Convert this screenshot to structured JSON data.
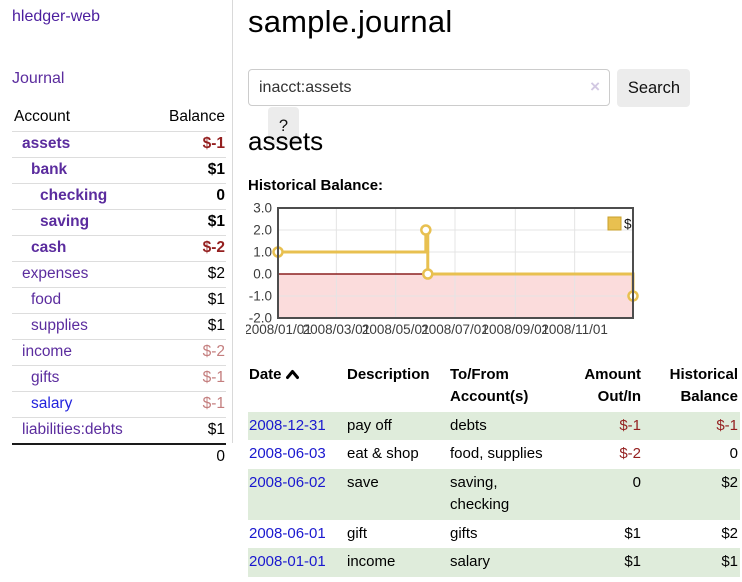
{
  "app": {
    "title": "hledger-web",
    "nav_journal": "Journal"
  },
  "sidebar": {
    "header": {
      "account": "Account",
      "balance": "Balance"
    },
    "rows": [
      {
        "name": "assets",
        "indent": 1,
        "bold": true,
        "balance": "$-1",
        "balance_style": "neg"
      },
      {
        "name": "bank",
        "indent": 2,
        "bold": true,
        "balance": "$1",
        "balance_style": "pos"
      },
      {
        "name": "checking",
        "indent": 3,
        "bold": true,
        "balance": "0",
        "balance_style": "pos"
      },
      {
        "name": "saving",
        "indent": 3,
        "bold": true,
        "balance": "$1",
        "balance_style": "pos"
      },
      {
        "name": "cash",
        "indent": 2,
        "bold": true,
        "balance": "$-2",
        "balance_style": "neg"
      },
      {
        "name": "expenses",
        "indent": 1,
        "bold": false,
        "balance": "$2",
        "balance_style": "pos"
      },
      {
        "name": "food",
        "indent": 2,
        "bold": false,
        "balance": "$1",
        "balance_style": "pos"
      },
      {
        "name": "supplies",
        "indent": 2,
        "bold": false,
        "balance": "$1",
        "balance_style": "pos"
      },
      {
        "name": "income",
        "indent": 1,
        "bold": false,
        "balance": "$-2",
        "balance_style": "negmuted"
      },
      {
        "name": "gifts",
        "indent": 2,
        "bold": false,
        "balance": "$-1",
        "balance_style": "negmuted"
      },
      {
        "name": "salary",
        "indent": 2,
        "bold": false,
        "link_style": "blue",
        "balance": "$-1",
        "balance_style": "negmuted"
      },
      {
        "name": "liabilities:debts",
        "indent": 1,
        "bold": false,
        "balance": "$1",
        "balance_style": "pos"
      }
    ],
    "total": "0"
  },
  "header": {
    "title": "sample.journal"
  },
  "search": {
    "value": "inacct:assets",
    "clear_icon_glyph": "×",
    "button_label": "Search",
    "help_label": "?"
  },
  "content": {
    "heading": "assets",
    "chart_label": "Historical Balance:"
  },
  "chart_data": {
    "type": "line",
    "step": true,
    "title": "Historical Balance:",
    "series": [
      {
        "name": "$",
        "points": [
          {
            "date": "2008-01-01",
            "day": 0,
            "value": 1
          },
          {
            "date": "2008-06-01",
            "day": 152,
            "value": 2
          },
          {
            "date": "2008-06-03",
            "day": 154,
            "value": 0
          },
          {
            "date": "2008-12-31",
            "day": 365,
            "value": -1
          }
        ]
      }
    ],
    "ylim": [
      -2,
      3
    ],
    "yticks": [
      "3.0",
      "2.0",
      "1.0",
      "0.0",
      "-1.0",
      "-2.0"
    ],
    "xlim_days": [
      0,
      365
    ],
    "xticks": [
      {
        "label": "2008/01/01",
        "day": 0
      },
      {
        "label": "2008/03/01",
        "day": 60
      },
      {
        "label": "2008/05/01",
        "day": 121
      },
      {
        "label": "2008/07/01",
        "day": 182
      },
      {
        "label": "2008/09/01",
        "day": 244
      },
      {
        "label": "2008/11/01",
        "day": 305
      }
    ],
    "legend": "$",
    "grid": true,
    "legend_position": "top-right",
    "colors": {
      "line": "#e8c050",
      "marker_fill": "#ffffff",
      "negative_fill": "#fbdcdc",
      "zero_line": "#8b2020",
      "grid": "#e4e4e4",
      "border": "#4d4d4d",
      "legend_box": "#e8c050",
      "legend_box_border": "#c9a02c"
    }
  },
  "register": {
    "headers": {
      "date": "Date",
      "description": "Description",
      "tofrom": "To/From Account(s)",
      "amount": "Amount Out/In",
      "balance": "Historical Balance"
    },
    "rows": [
      {
        "date": "2008-12-31",
        "description": "pay off",
        "accounts": "debts",
        "amount": "$-1",
        "amount_neg": true,
        "balance": "$-1",
        "balance_neg": true
      },
      {
        "date": "2008-06-03",
        "description": "eat & shop",
        "accounts": "food, supplies",
        "amount": "$-2",
        "amount_neg": true,
        "balance": "0",
        "balance_neg": false
      },
      {
        "date": "2008-06-02",
        "description": "save",
        "accounts": "saving,\nchecking",
        "amount": "0",
        "amount_neg": false,
        "balance": "$2",
        "balance_neg": false
      },
      {
        "date": "2008-06-01",
        "description": "gift",
        "accounts": "gifts",
        "amount": "$1",
        "amount_neg": false,
        "balance": "$2",
        "balance_neg": false
      },
      {
        "date": "2008-01-01",
        "description": "income",
        "accounts": "salary",
        "amount": "$1",
        "amount_neg": false,
        "balance": "$1",
        "balance_neg": false
      }
    ]
  }
}
